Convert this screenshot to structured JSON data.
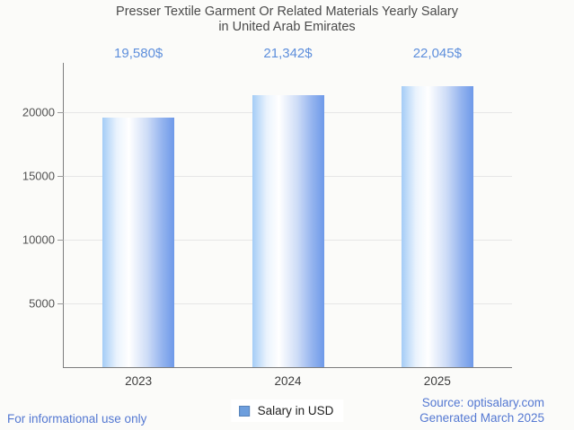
{
  "title": {
    "line1": "Presser Textile Garment Or Related Materials Yearly Salary",
    "line2": "in United Arab Emirates"
  },
  "chart_data": {
    "type": "bar",
    "title": "Presser Textile Garment Or Related Materials Yearly Salary in United Arab Emirates",
    "categories": [
      "2023",
      "2024",
      "2025"
    ],
    "values": [
      19580,
      21342,
      22045
    ],
    "value_labels": [
      "19,580$",
      "21,342$",
      "22,045$"
    ],
    "series_name": "Salary in USD",
    "xlabel": "",
    "ylabel": "",
    "ylim": [
      0,
      23860
    ],
    "yticks": [
      5000,
      10000,
      15000,
      20000
    ],
    "grid": "horizontal",
    "legend_position": "bottom-center",
    "bar_gradient": [
      "#a4ccf6",
      "#ffffff",
      "#6e99e9"
    ],
    "value_label_color": "#5e8fdc",
    "background_color": "#fbfbf9"
  },
  "legend": {
    "label": "Salary in USD",
    "swatch_fill": "#6d9edd",
    "swatch_border": "#5580b8"
  },
  "footer": {
    "disclaimer": "For informational use only",
    "source": "Source: optisalary.com",
    "generated": "Generated March 2025"
  }
}
